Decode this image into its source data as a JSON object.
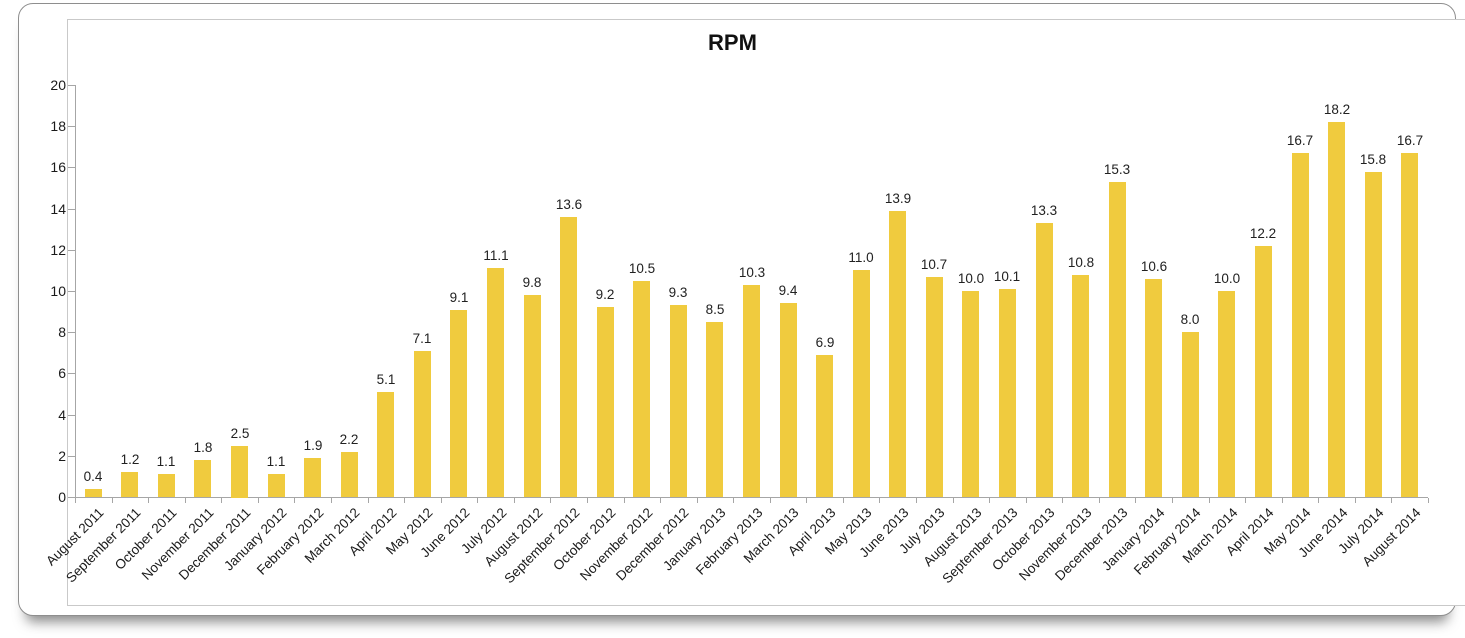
{
  "chart_data": {
    "type": "bar",
    "title": "RPM",
    "xlabel": "",
    "ylabel": "",
    "categories": [
      "August 2011",
      "September 2011",
      "October 2011",
      "November 2011",
      "December 2011",
      "January 2012",
      "February 2012",
      "March 2012",
      "April 2012",
      "May 2012",
      "June 2012",
      "July 2012",
      "August 2012",
      "September 2012",
      "October 2012",
      "November 2012",
      "December 2012",
      "January 2013",
      "February 2013",
      "March 2013",
      "April 2013",
      "May 2013",
      "June 2013",
      "July 2013",
      "August 2013",
      "September 2013",
      "October 2013",
      "November 2013",
      "December 2013",
      "January 2014",
      "February 2014",
      "March 2014",
      "April 2014",
      "May 2014",
      "June 2014",
      "July 2014",
      "August 2014"
    ],
    "values": [
      0.4,
      1.2,
      1.1,
      1.8,
      2.5,
      1.1,
      1.9,
      2.2,
      5.1,
      7.1,
      9.1,
      11.1,
      9.8,
      13.6,
      9.2,
      10.5,
      9.3,
      8.5,
      10.3,
      9.4,
      6.9,
      11.0,
      13.9,
      10.7,
      10.0,
      10.1,
      13.3,
      10.8,
      15.3,
      10.6,
      8.0,
      10.0,
      12.2,
      16.7,
      18.2,
      15.8,
      16.7
    ],
    "ylim": [
      0,
      20
    ],
    "yticks": [
      0,
      2,
      4,
      6,
      8,
      10,
      12,
      14,
      16,
      18,
      20
    ],
    "grid": false,
    "legend": null,
    "value_labels": true,
    "value_label_decimals": 1,
    "x_label_rotation": -45,
    "bar_color": "#F0CB3E",
    "axis_color": "#A6A6A6",
    "label_color": "#1A1A1A"
  }
}
